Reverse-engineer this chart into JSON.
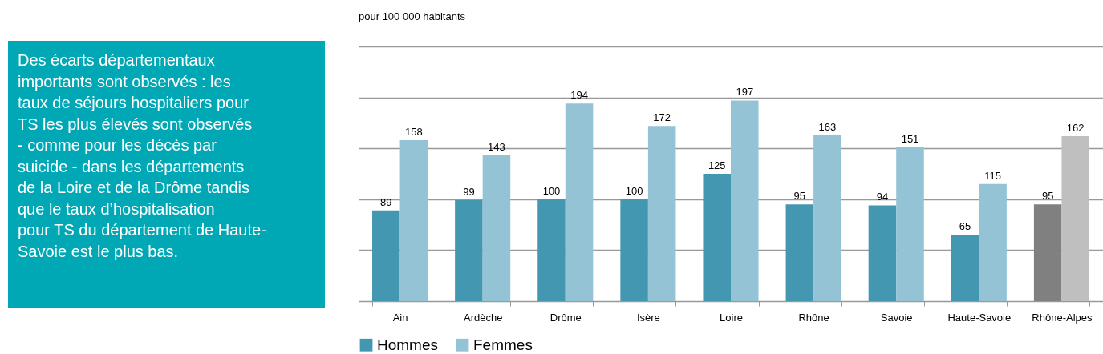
{
  "chart_data": {
    "type": "bar",
    "subtitle": "pour 100 000 habitants",
    "categories": [
      "Ain",
      "Ardèche",
      "Drôme",
      "Isère",
      "Loire",
      "Rhône",
      "Savoie",
      "Haute-Savoie",
      "Rhône-Alpes"
    ],
    "series": [
      {
        "name": "Hommes",
        "color": "#4497b0",
        "colors": [
          "#4497b0",
          "#4497b0",
          "#4497b0",
          "#4497b0",
          "#4497b0",
          "#4497b0",
          "#4497b0",
          "#4497b0",
          "#808080"
        ],
        "values": [
          89,
          99,
          100,
          100,
          125,
          95,
          94,
          65,
          95
        ]
      },
      {
        "name": "Femmes",
        "color": "#93c3d5",
        "colors": [
          "#93c3d5",
          "#93c3d5",
          "#93c3d5",
          "#93c3d5",
          "#93c3d5",
          "#93c3d5",
          "#93c3d5",
          "#93c3d5",
          "#bfbfbf"
        ],
        "values": [
          158,
          143,
          194,
          172,
          197,
          163,
          151,
          115,
          162
        ]
      }
    ],
    "ylim": [
      0,
      250
    ],
    "yticks": [
      {
        "value": 0,
        "label": null
      },
      {
        "value": 50,
        "label": null
      },
      {
        "value": 100,
        "label": null
      },
      {
        "value": 150,
        "label": null
      },
      {
        "value": 200,
        "label": null
      },
      {
        "value": 250,
        "label": null
      }
    ],
    "tick_labels": "x",
    "grid": "y",
    "data_labels": true,
    "legend": "bottom",
    "annotations": [
      "Des écarts départementaux importants sont observés : les taux de séjours hospitaliers pour TS les plus élevés sont observés - comme pour les décès par suicide - dans les départements de la Loire et de la Drôme tandis que le taux d’hospitalisation pour TS du département de Haute-Savoie est le plus bas."
    ]
  }
}
